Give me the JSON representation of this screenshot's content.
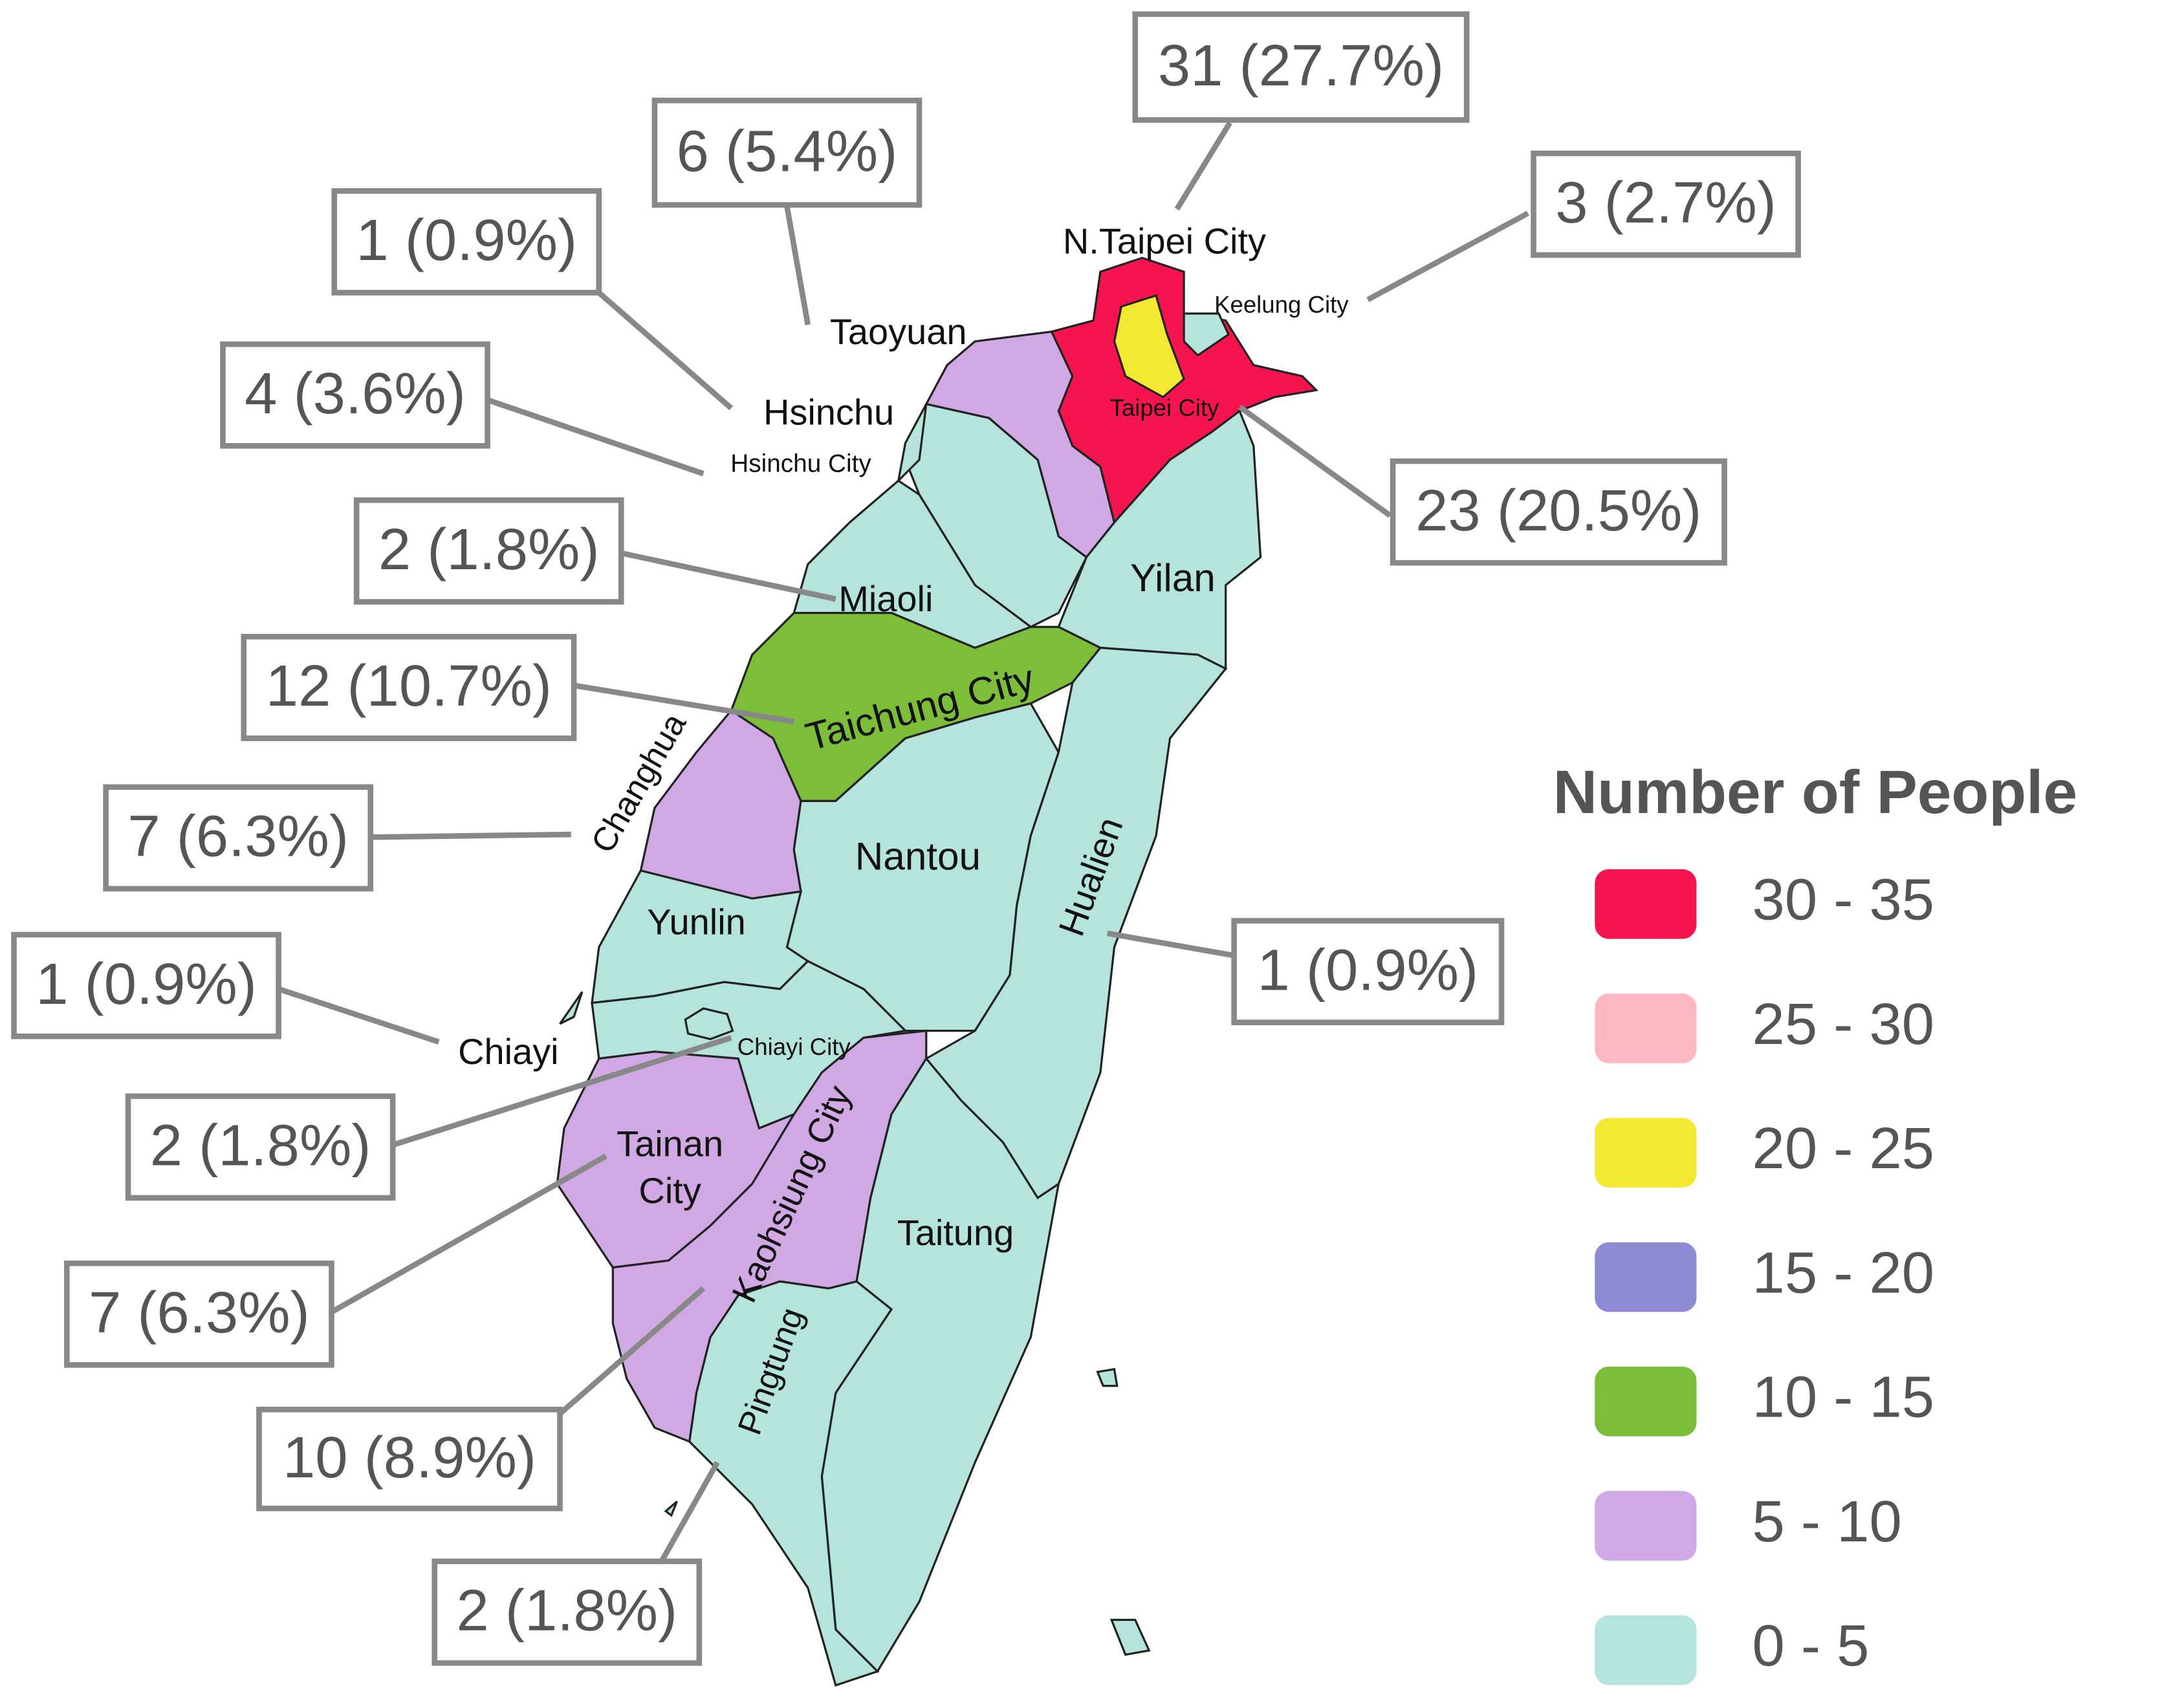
{
  "legend": {
    "title": "Number of  People",
    "items": [
      {
        "label": "30 - 35",
        "color": "#f7134e"
      },
      {
        "label": "25 - 30",
        "color": "#ffb8c2"
      },
      {
        "label": "20 - 25",
        "color": "#f3e933"
      },
      {
        "label": "15 - 20",
        "color": "#8e8ad4"
      },
      {
        "label": "10 - 15",
        "color": "#7cbd3a"
      },
      {
        "label": "5 - 10",
        "color": "#d0a8e4"
      },
      {
        "label": "0 - 5",
        "color": "#b5e4dd"
      }
    ]
  },
  "regions": [
    {
      "name": "N.Taipei City",
      "callout": "31 (27.7%)",
      "color": "#f7134e"
    },
    {
      "name": "Taipei City",
      "callout": "23 (20.5%)",
      "color": "#f3e933"
    },
    {
      "name": "Keelung City",
      "callout": "3 (2.7%)",
      "color": "#b5e4dd"
    },
    {
      "name": "Taoyuan",
      "callout": "6 (5.4%)",
      "color": "#d0a8e4"
    },
    {
      "name": "Hsinchu",
      "callout": "1 (0.9%)",
      "color": "#b5e4dd"
    },
    {
      "name": "Hsinchu City",
      "callout": "4 (3.6%)",
      "color": "#b5e4dd"
    },
    {
      "name": "Miaoli",
      "callout": "2 (1.8%)",
      "color": "#b5e4dd"
    },
    {
      "name": "Yilan",
      "color": "#b5e4dd"
    },
    {
      "name": "Taichung City",
      "callout": "12 (10.7%)",
      "color": "#7cbd3a"
    },
    {
      "name": "Changhua",
      "callout": "7 (6.3%)",
      "color": "#d0a8e4"
    },
    {
      "name": "Nantou",
      "color": "#b5e4dd"
    },
    {
      "name": "Hualien",
      "callout": "1 (0.9%)",
      "color": "#b5e4dd"
    },
    {
      "name": "Yunlin",
      "color": "#b5e4dd"
    },
    {
      "name": "Chiayi",
      "callout": "1 (0.9%)",
      "color": "#b5e4dd"
    },
    {
      "name": "Chiayi City",
      "callout": "2 (1.8%)",
      "color": "#b5e4dd"
    },
    {
      "name": [
        "Tainan",
        "City"
      ],
      "callout": "7 (6.3%)",
      "color": "#d0a8e4"
    },
    {
      "name": "Kaohsiung City",
      "callout": "10 (8.9%)",
      "color": "#d0a8e4"
    },
    {
      "name": "Taitung",
      "color": "#b5e4dd"
    },
    {
      "name": "Pingtung",
      "callout": "2 (1.8%)",
      "color": "#b5e4dd"
    }
  ]
}
